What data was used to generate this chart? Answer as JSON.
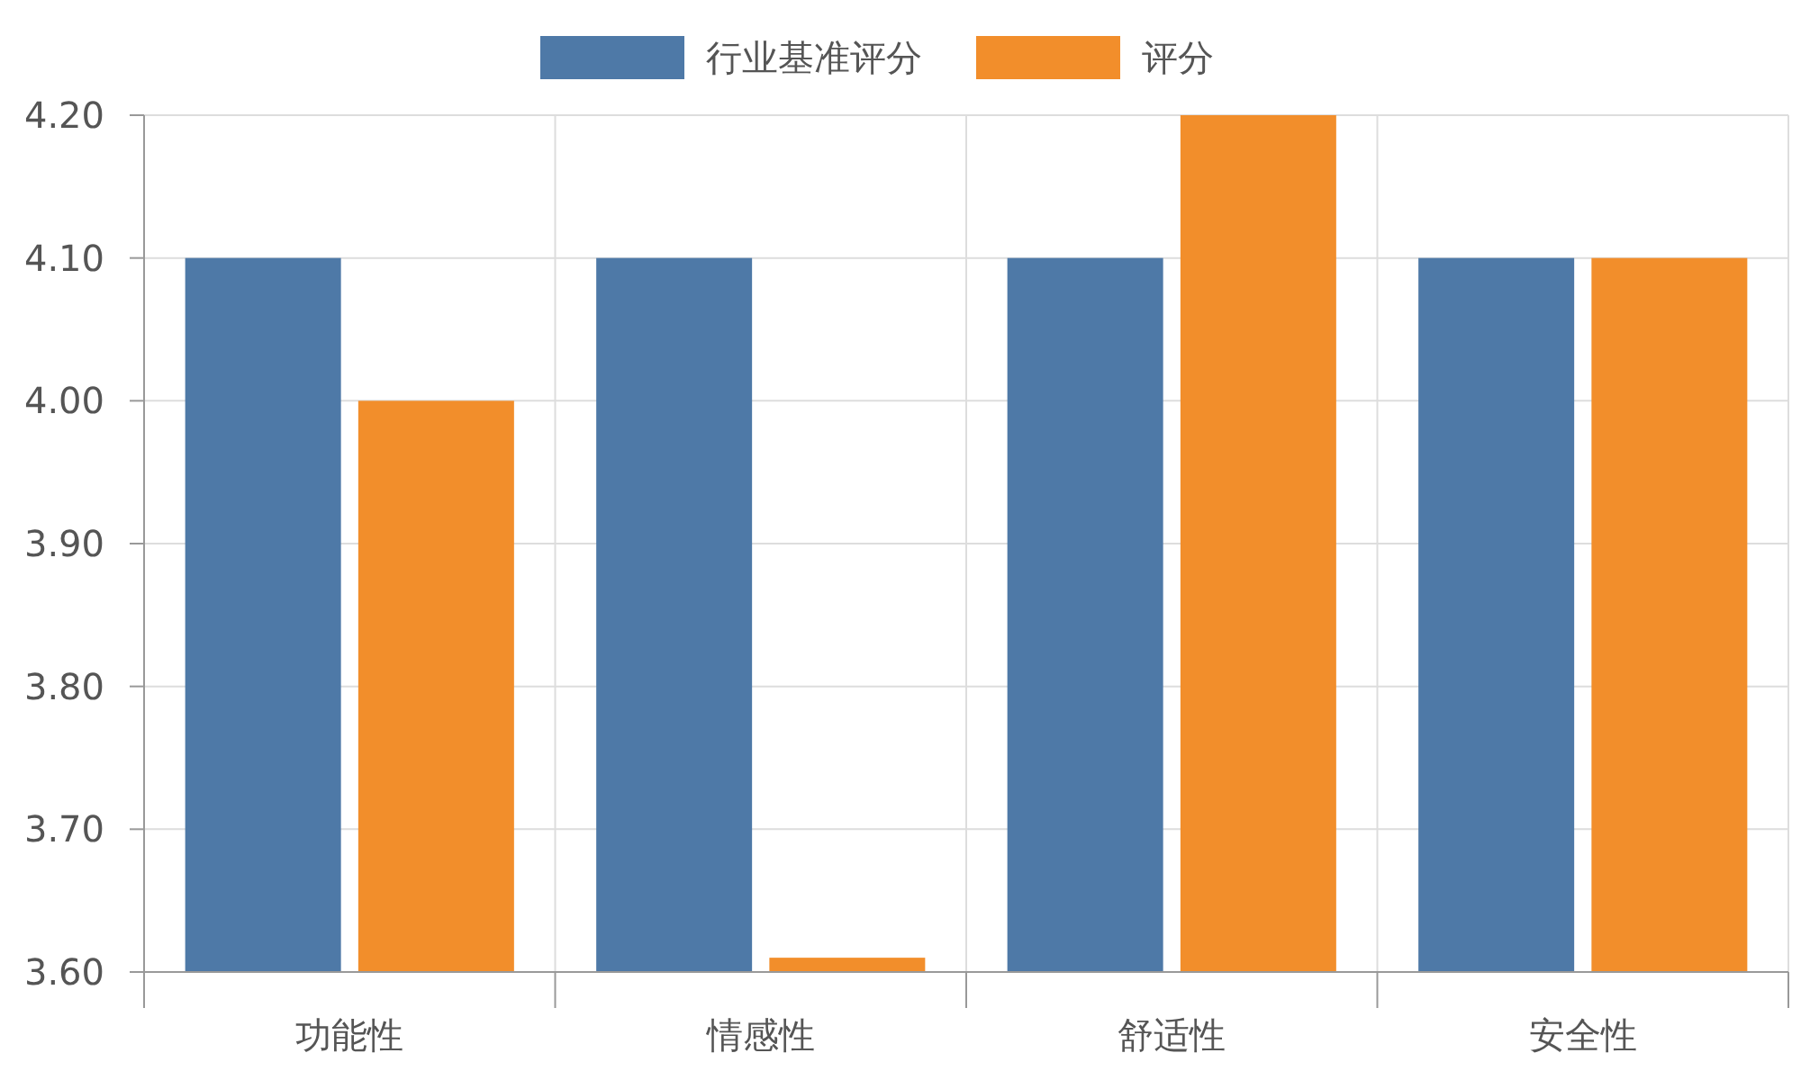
{
  "chart_data": {
    "type": "bar",
    "categories": [
      "功能性",
      "情感性",
      "舒适性",
      "安全性"
    ],
    "series": [
      {
        "name": "行业基准评分",
        "color": "#4e79a7",
        "values": [
          4.1,
          4.1,
          4.1,
          4.1
        ]
      },
      {
        "name": "评分",
        "color": "#f28e2b",
        "values": [
          4.0,
          3.61,
          4.2,
          4.1
        ]
      }
    ],
    "ylim": [
      3.6,
      4.2
    ],
    "yticks": [
      {
        "value": 3.6,
        "label": "3.60"
      },
      {
        "value": 3.7,
        "label": "3.70"
      },
      {
        "value": 3.8,
        "label": "3.80"
      },
      {
        "value": 3.9,
        "label": "3.90"
      },
      {
        "value": 4.0,
        "label": "4.00"
      },
      {
        "value": 4.1,
        "label": "4.10"
      },
      {
        "value": 4.2,
        "label": "4.20"
      }
    ],
    "grid": true,
    "legend": "top"
  }
}
